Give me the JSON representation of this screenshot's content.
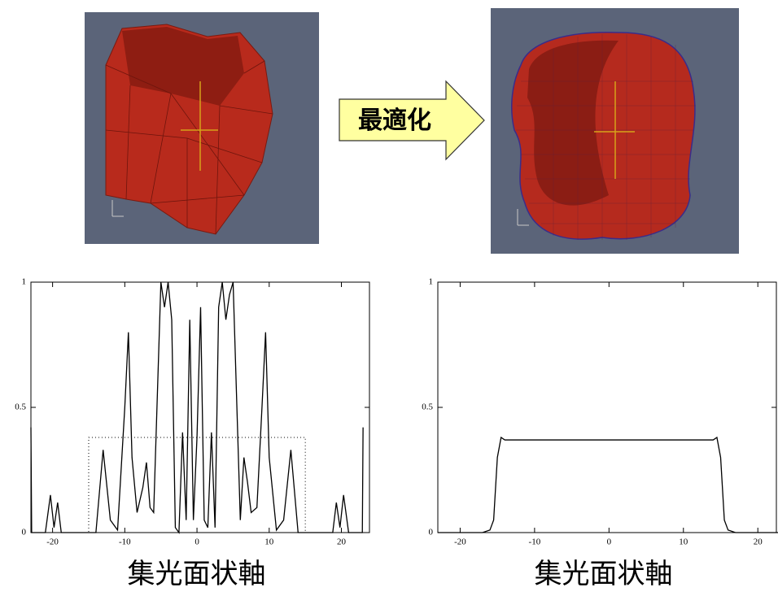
{
  "arrow_label": "最適化",
  "chart_data": [
    {
      "type": "line",
      "x_label": "集光面状軸",
      "xlim": [
        -23,
        24
      ],
      "ylim": [
        0,
        1
      ],
      "xticks": [
        -20,
        -10,
        0,
        10,
        20
      ],
      "yticks": [
        0,
        0.5,
        1
      ],
      "series": [
        {
          "color": "#000000",
          "style": "solid",
          "x": [
            -23,
            -22.9,
            -21,
            -20.3,
            -19.8,
            -19.3,
            -18.8,
            -14,
            -13,
            -12,
            -11,
            -10,
            -9.5,
            -9,
            -8.3,
            -7.5,
            -7,
            -6.5,
            -6,
            -5,
            -4.5,
            -4,
            -3.5,
            -3,
            -2.5,
            -2,
            -1.5,
            -1,
            -0.5,
            0,
            0.5,
            1,
            1.5,
            2,
            2.5,
            3,
            3.5,
            4,
            4.5,
            5,
            6,
            6.5,
            7,
            7.5,
            8.3,
            9,
            9.5,
            10,
            11,
            12,
            13,
            14,
            18.8,
            19.3,
            19.8,
            20.3,
            21,
            22.9,
            23
          ],
          "values": [
            0.42,
            0,
            0,
            0.15,
            0.02,
            0.12,
            0,
            0,
            0.33,
            0.05,
            0.01,
            0.5,
            0.8,
            0.3,
            0.08,
            0.18,
            0.28,
            0.1,
            0.08,
            1,
            0.9,
            1,
            0.85,
            0.02,
            0,
            0.4,
            0.05,
            0.85,
            0.05,
            0.38,
            0.9,
            0.05,
            0.02,
            0.4,
            0.02,
            0.9,
            1,
            0.85,
            0.95,
            1,
            0.05,
            0.3,
            0.2,
            0.08,
            0.1,
            0.5,
            0.8,
            0.3,
            0.01,
            0.05,
            0.33,
            0,
            0,
            0.12,
            0.02,
            0.15,
            0,
            0,
            0.42
          ]
        },
        {
          "color": "#000000",
          "style": "dotted",
          "x": [
            -23,
            -15,
            -15,
            15,
            15,
            23
          ],
          "values": [
            0,
            0,
            0.38,
            0.38,
            0,
            0
          ]
        }
      ]
    },
    {
      "type": "line",
      "x_label": "集光面状軸",
      "xlim": [
        -23,
        22.6
      ],
      "ylim": [
        0,
        1
      ],
      "xticks": [
        -20,
        -10,
        0,
        10,
        20
      ],
      "yticks": [
        0,
        0.5,
        1
      ],
      "series": [
        {
          "color": "#000000",
          "style": "solid",
          "x": [
            -23,
            -17,
            -16,
            -15.5,
            -15,
            -14.5,
            -14,
            14,
            14.5,
            15,
            15.5,
            16,
            17,
            23
          ],
          "values": [
            0,
            0,
            0.01,
            0.05,
            0.3,
            0.38,
            0.37,
            0.37,
            0.38,
            0.3,
            0.05,
            0.01,
            0,
            0
          ]
        }
      ]
    }
  ]
}
